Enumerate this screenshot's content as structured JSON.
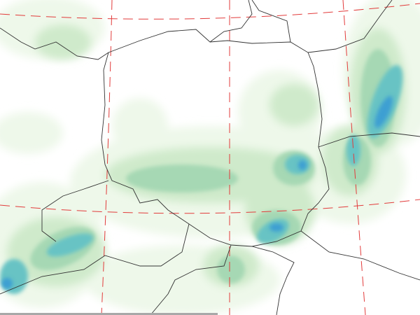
{
  "map": {
    "type": "precipitation-field",
    "colors": {
      "level1": "#eef8ea",
      "level2": "#cfeacb",
      "level3": "#a6d8b4",
      "level4": "#68c3c4",
      "level5": "#3d9fd2",
      "borders": "#333333",
      "graticule": "#e23b3b",
      "scrollbar": "#a8a8a8"
    }
  }
}
